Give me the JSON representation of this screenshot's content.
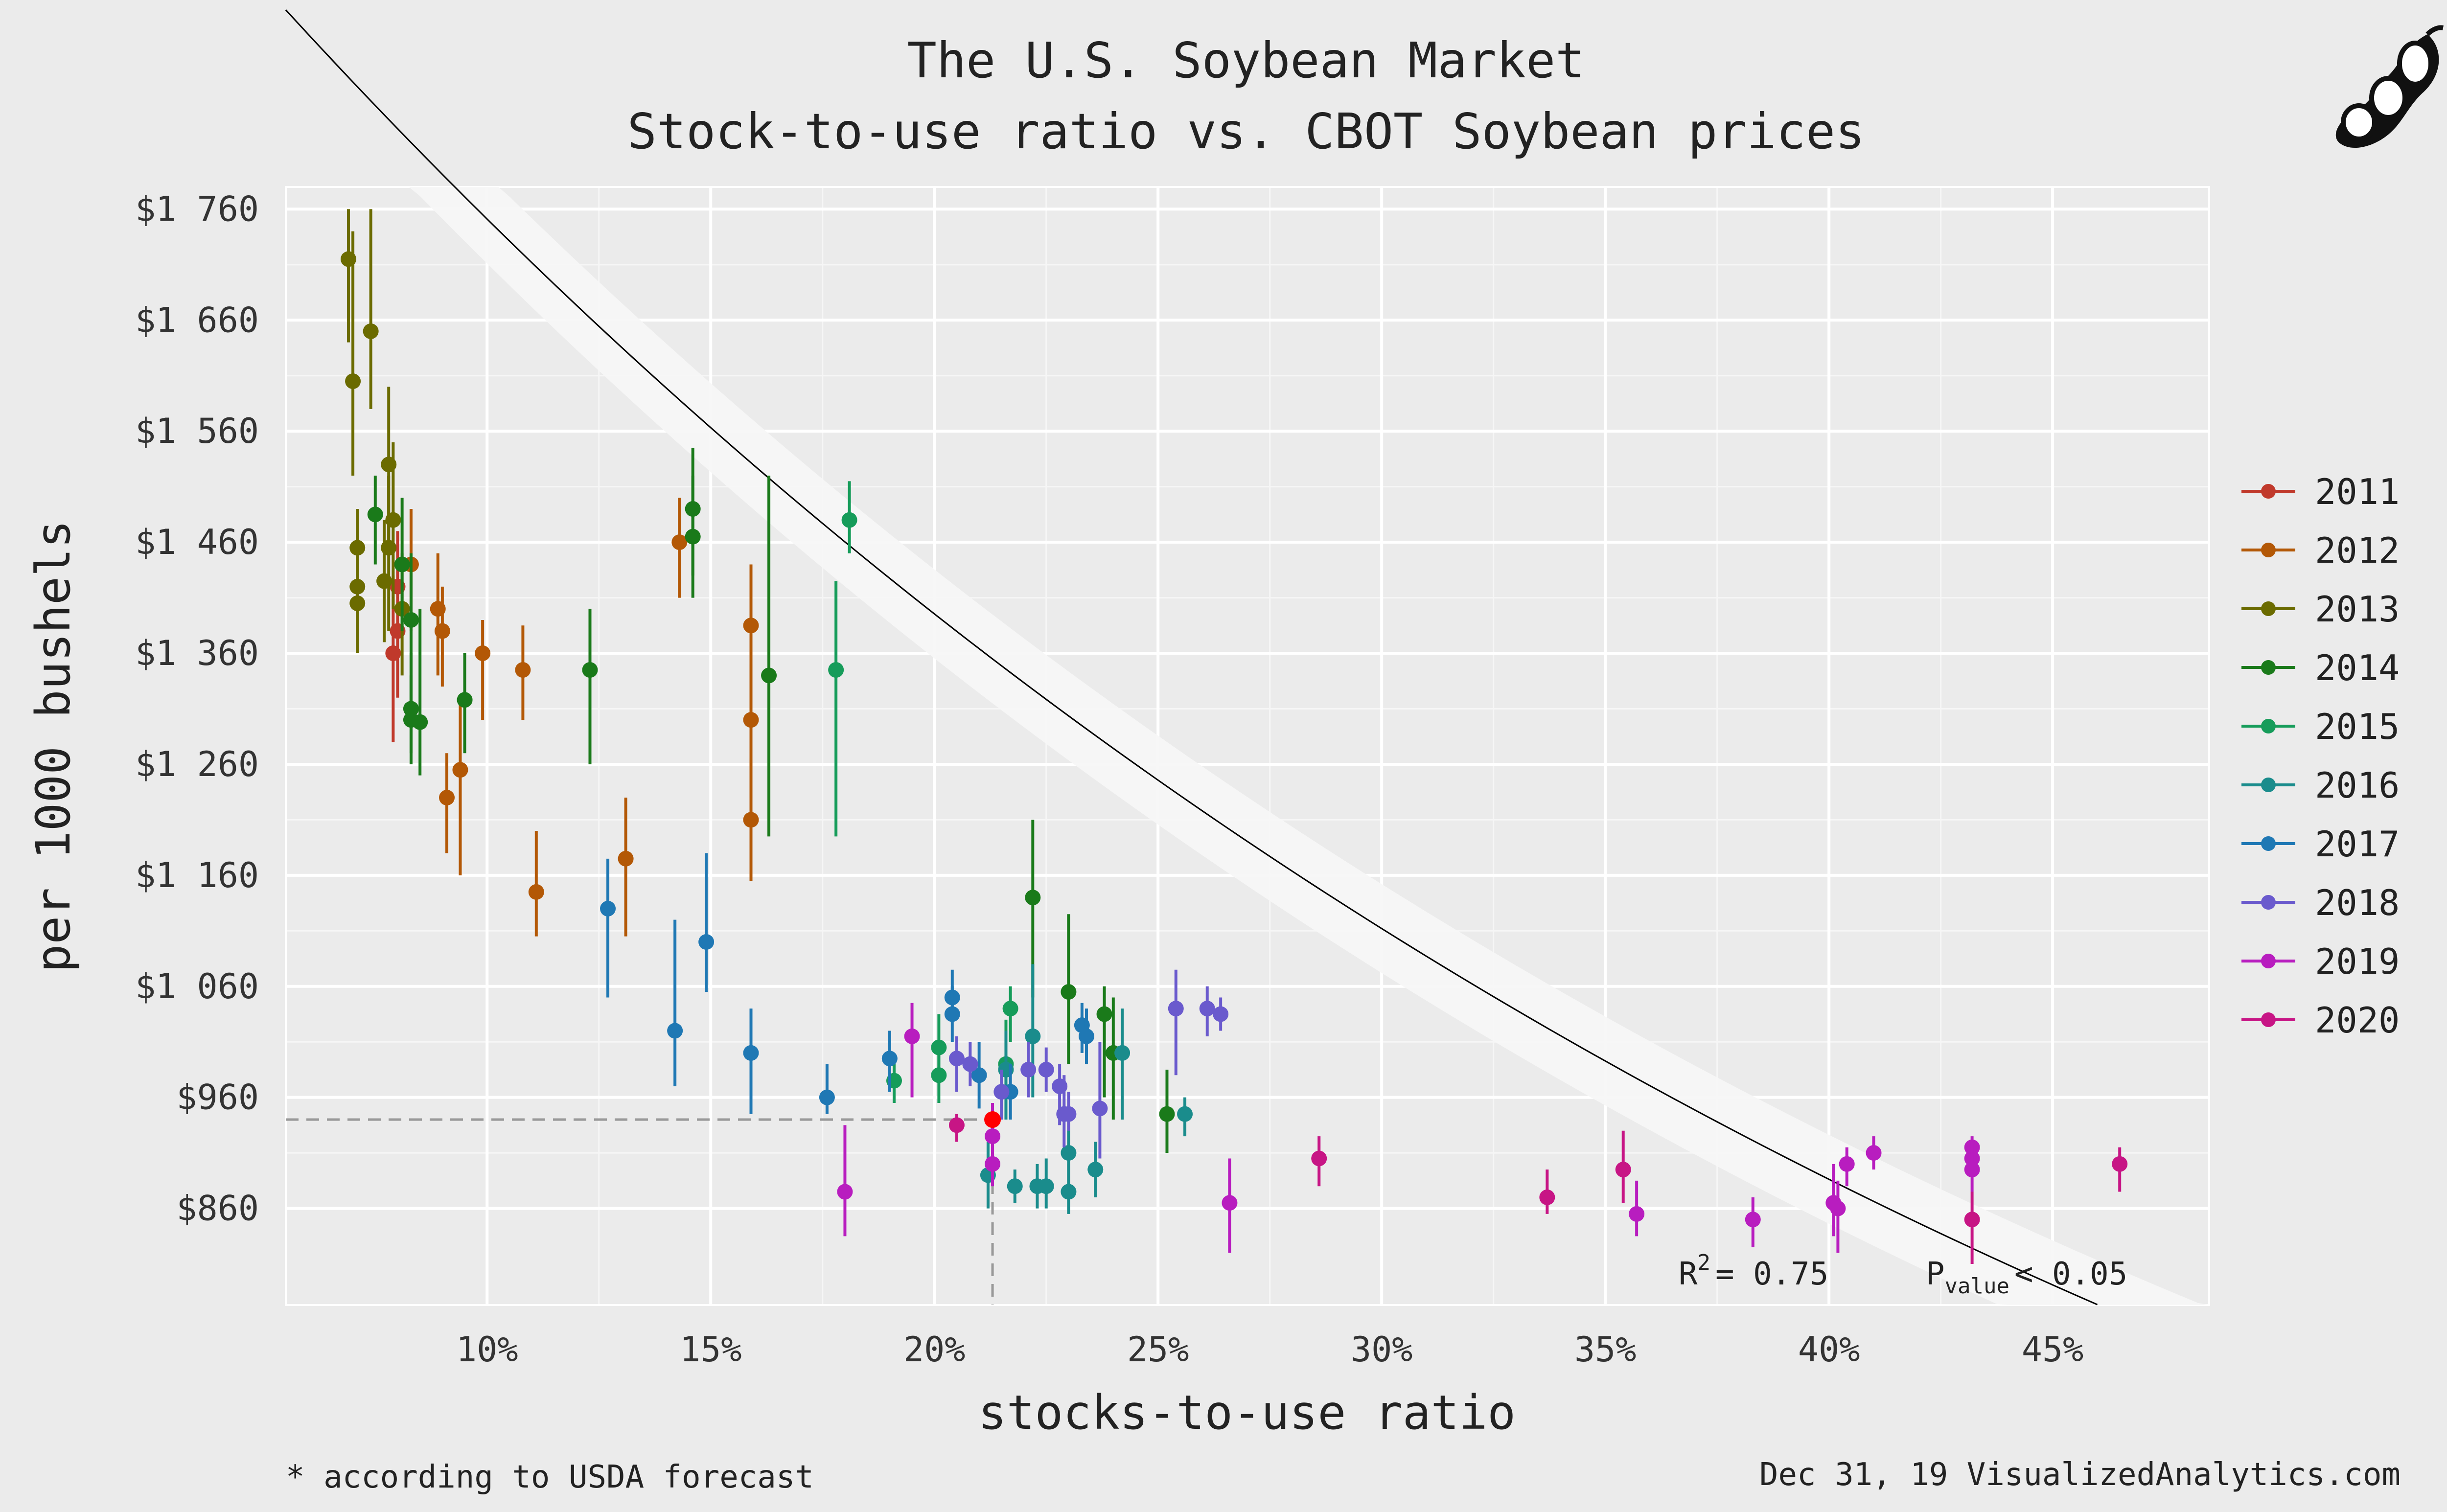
{
  "chart_data": {
    "type": "scatter",
    "title": "The U.S. Soybean Market",
    "subtitle": "Stock-to-use ratio vs. CBOT Soybean prices",
    "xlabel": "stocks-to-use ratio",
    "ylabel": "per 1000 bushels",
    "xlim": [
      5.5,
      48.5
    ],
    "ylim": [
      773,
      1780
    ],
    "x_ticks": [
      {
        "value": 10,
        "label": "10%"
      },
      {
        "value": 15,
        "label": "15%"
      },
      {
        "value": 20,
        "label": "20%"
      },
      {
        "value": 25,
        "label": "25%"
      },
      {
        "value": 30,
        "label": "30%"
      },
      {
        "value": 35,
        "label": "35%"
      },
      {
        "value": 40,
        "label": "40%"
      },
      {
        "value": 45,
        "label": "45%"
      }
    ],
    "y_ticks": [
      {
        "value": 860,
        "label": "$860"
      },
      {
        "value": 960,
        "label": "$960"
      },
      {
        "value": 1060,
        "label": "$1 060"
      },
      {
        "value": 1160,
        "label": "$1 160"
      },
      {
        "value": 1260,
        "label": "$1 260"
      },
      {
        "value": 1360,
        "label": "$1 360"
      },
      {
        "value": 1460,
        "label": "$1 460"
      },
      {
        "value": 1560,
        "label": "$1 560"
      },
      {
        "value": 1660,
        "label": "$1 660"
      },
      {
        "value": 1760,
        "label": "$1 760"
      }
    ],
    "grid": true,
    "legend_position": "right",
    "fit": {
      "type": "exponential",
      "a": 2197.3,
      "b": -0.0227,
      "band": 40,
      "r2_label": "R",
      "r2_sup": "2",
      "r2_value": "= 0.75",
      "p_label": "P",
      "p_sub": "value",
      "p_value": "< 0.05"
    },
    "highlight": {
      "x": 21.3,
      "y": 940,
      "color": "#ff0000"
    },
    "series": [
      {
        "name": "2011",
        "color": "#c0392b",
        "points": [
          {
            "x": 7.9,
            "y": 1360,
            "lo": 1280,
            "hi": 1430
          },
          {
            "x": 8.0,
            "y": 1380,
            "lo": 1320,
            "hi": 1440
          },
          {
            "x": 8.0,
            "y": 1420,
            "lo": 1360,
            "hi": 1470
          }
        ]
      },
      {
        "name": "2012",
        "color": "#b35806",
        "points": [
          {
            "x": 8.3,
            "y": 1440,
            "lo": 1380,
            "hi": 1490
          },
          {
            "x": 8.9,
            "y": 1400,
            "lo": 1340,
            "hi": 1450
          },
          {
            "x": 9.0,
            "y": 1380,
            "lo": 1330,
            "hi": 1420
          },
          {
            "x": 9.1,
            "y": 1230,
            "lo": 1180,
            "hi": 1270
          },
          {
            "x": 9.4,
            "y": 1255,
            "lo": 1160,
            "hi": 1320
          },
          {
            "x": 9.9,
            "y": 1360,
            "lo": 1300,
            "hi": 1390
          },
          {
            "x": 10.8,
            "y": 1345,
            "lo": 1300,
            "hi": 1385
          },
          {
            "x": 11.1,
            "y": 1145,
            "lo": 1105,
            "hi": 1200
          },
          {
            "x": 13.1,
            "y": 1175,
            "lo": 1105,
            "hi": 1230
          },
          {
            "x": 14.3,
            "y": 1460,
            "lo": 1410,
            "hi": 1500
          },
          {
            "x": 15.9,
            "y": 1385,
            "lo": 1310,
            "hi": 1440
          },
          {
            "x": 15.9,
            "y": 1300,
            "lo": 1230,
            "hi": 1350
          },
          {
            "x": 15.9,
            "y": 1210,
            "lo": 1155,
            "hi": 1265
          }
        ]
      },
      {
        "name": "2013",
        "color": "#6b6b00",
        "points": [
          {
            "x": 6.9,
            "y": 1715,
            "lo": 1640,
            "hi": 1760
          },
          {
            "x": 7.0,
            "y": 1605,
            "lo": 1520,
            "hi": 1740
          },
          {
            "x": 7.1,
            "y": 1455,
            "lo": 1390,
            "hi": 1490
          },
          {
            "x": 7.1,
            "y": 1420,
            "lo": 1360,
            "hi": 1470
          },
          {
            "x": 7.1,
            "y": 1405,
            "lo": 1360,
            "hi": 1440
          },
          {
            "x": 7.4,
            "y": 1650,
            "lo": 1580,
            "hi": 1760
          },
          {
            "x": 7.7,
            "y": 1425,
            "lo": 1370,
            "hi": 1480
          },
          {
            "x": 7.8,
            "y": 1530,
            "lo": 1460,
            "hi": 1600
          },
          {
            "x": 7.8,
            "y": 1455,
            "lo": 1380,
            "hi": 1520
          },
          {
            "x": 7.9,
            "y": 1480,
            "lo": 1400,
            "hi": 1550
          },
          {
            "x": 8.1,
            "y": 1400,
            "lo": 1340,
            "hi": 1450
          }
        ]
      },
      {
        "name": "2014",
        "color": "#1a7a1a",
        "points": [
          {
            "x": 7.5,
            "y": 1485,
            "lo": 1440,
            "hi": 1520
          },
          {
            "x": 8.1,
            "y": 1440,
            "lo": 1380,
            "hi": 1500
          },
          {
            "x": 8.3,
            "y": 1390,
            "lo": 1300,
            "hi": 1450
          },
          {
            "x": 8.3,
            "y": 1310,
            "lo": 1270,
            "hi": 1360
          },
          {
            "x": 8.3,
            "y": 1300,
            "lo": 1260,
            "hi": 1340
          },
          {
            "x": 8.5,
            "y": 1298,
            "lo": 1250,
            "hi": 1400
          },
          {
            "x": 9.5,
            "y": 1318,
            "lo": 1270,
            "hi": 1360
          },
          {
            "x": 12.3,
            "y": 1345,
            "lo": 1260,
            "hi": 1400
          },
          {
            "x": 14.6,
            "y": 1465,
            "lo": 1410,
            "hi": 1520
          },
          {
            "x": 14.6,
            "y": 1490,
            "lo": 1430,
            "hi": 1545
          },
          {
            "x": 16.3,
            "y": 1340,
            "lo": 1195,
            "hi": 1520
          },
          {
            "x": 22.2,
            "y": 1140,
            "lo": 1050,
            "hi": 1210
          },
          {
            "x": 23.0,
            "y": 1055,
            "lo": 990,
            "hi": 1125
          },
          {
            "x": 23.8,
            "y": 1035,
            "lo": 960,
            "hi": 1060
          },
          {
            "x": 24.0,
            "y": 1000,
            "lo": 940,
            "hi": 1050
          },
          {
            "x": 25.2,
            "y": 945,
            "lo": 910,
            "hi": 985
          }
        ]
      },
      {
        "name": "2015",
        "color": "#169c5a",
        "points": [
          {
            "x": 17.8,
            "y": 1345,
            "lo": 1195,
            "hi": 1425
          },
          {
            "x": 18.1,
            "y": 1480,
            "lo": 1450,
            "hi": 1515
          },
          {
            "x": 19.1,
            "y": 975,
            "lo": 955,
            "hi": 995
          },
          {
            "x": 20.1,
            "y": 1005,
            "lo": 975,
            "hi": 1035
          },
          {
            "x": 20.1,
            "y": 980,
            "lo": 955,
            "hi": 1005
          },
          {
            "x": 21.7,
            "y": 1040,
            "lo": 1010,
            "hi": 1060
          },
          {
            "x": 21.6,
            "y": 990,
            "lo": 940,
            "hi": 1030
          }
        ]
      },
      {
        "name": "2016",
        "color": "#1a8c8c",
        "points": [
          {
            "x": 21.2,
            "y": 890,
            "lo": 860,
            "hi": 920
          },
          {
            "x": 21.6,
            "y": 985,
            "lo": 940,
            "hi": 1020
          },
          {
            "x": 21.8,
            "y": 880,
            "lo": 865,
            "hi": 895
          },
          {
            "x": 22.2,
            "y": 1015,
            "lo": 960,
            "hi": 1080
          },
          {
            "x": 22.3,
            "y": 880,
            "lo": 860,
            "hi": 900
          },
          {
            "x": 22.5,
            "y": 880,
            "lo": 860,
            "hi": 905
          },
          {
            "x": 23.0,
            "y": 910,
            "lo": 880,
            "hi": 940
          },
          {
            "x": 23.0,
            "y": 875,
            "lo": 855,
            "hi": 900
          },
          {
            "x": 23.6,
            "y": 895,
            "lo": 870,
            "hi": 920
          },
          {
            "x": 24.2,
            "y": 1000,
            "lo": 940,
            "hi": 1040
          },
          {
            "x": 25.6,
            "y": 945,
            "lo": 925,
            "hi": 960
          }
        ]
      },
      {
        "name": "2017",
        "color": "#1f78b4",
        "points": [
          {
            "x": 12.7,
            "y": 1130,
            "lo": 1050,
            "hi": 1175
          },
          {
            "x": 14.2,
            "y": 1020,
            "lo": 970,
            "hi": 1120
          },
          {
            "x": 14.9,
            "y": 1100,
            "lo": 1055,
            "hi": 1180
          },
          {
            "x": 15.9,
            "y": 1000,
            "lo": 945,
            "hi": 1040
          },
          {
            "x": 17.6,
            "y": 960,
            "lo": 945,
            "hi": 990
          },
          {
            "x": 19.0,
            "y": 995,
            "lo": 965,
            "hi": 1020
          },
          {
            "x": 20.4,
            "y": 1050,
            "lo": 1030,
            "hi": 1075
          },
          {
            "x": 20.4,
            "y": 1035,
            "lo": 1010,
            "hi": 1060
          },
          {
            "x": 21.0,
            "y": 980,
            "lo": 950,
            "hi": 1010
          },
          {
            "x": 21.7,
            "y": 965,
            "lo": 940,
            "hi": 990
          },
          {
            "x": 23.3,
            "y": 1025,
            "lo": 1000,
            "hi": 1045
          },
          {
            "x": 23.4,
            "y": 1015,
            "lo": 990,
            "hi": 1040
          }
        ]
      },
      {
        "name": "2018",
        "color": "#6a5acd",
        "points": [
          {
            "x": 20.5,
            "y": 995,
            "lo": 965,
            "hi": 1015
          },
          {
            "x": 20.8,
            "y": 990,
            "lo": 970,
            "hi": 1010
          },
          {
            "x": 21.5,
            "y": 965,
            "lo": 940,
            "hi": 985
          },
          {
            "x": 22.1,
            "y": 985,
            "lo": 960,
            "hi": 1010
          },
          {
            "x": 22.5,
            "y": 985,
            "lo": 965,
            "hi": 1005
          },
          {
            "x": 22.8,
            "y": 970,
            "lo": 935,
            "hi": 990
          },
          {
            "x": 22.9,
            "y": 945,
            "lo": 915,
            "hi": 980
          },
          {
            "x": 23.0,
            "y": 945,
            "lo": 930,
            "hi": 965
          },
          {
            "x": 23.7,
            "y": 950,
            "lo": 905,
            "hi": 1010
          },
          {
            "x": 25.4,
            "y": 1040,
            "lo": 980,
            "hi": 1075
          },
          {
            "x": 26.1,
            "y": 1040,
            "lo": 1015,
            "hi": 1060
          },
          {
            "x": 26.4,
            "y": 1035,
            "lo": 1020,
            "hi": 1050
          }
        ]
      },
      {
        "name": "2019",
        "color": "#b81dbf",
        "points": [
          {
            "x": 18.0,
            "y": 875,
            "lo": 835,
            "hi": 935
          },
          {
            "x": 19.5,
            "y": 1015,
            "lo": 960,
            "hi": 1045
          },
          {
            "x": 21.3,
            "y": 900,
            "lo": 880,
            "hi": 930
          },
          {
            "x": 21.3,
            "y": 925,
            "lo": 905,
            "hi": 955
          },
          {
            "x": 26.6,
            "y": 865,
            "lo": 820,
            "hi": 905
          },
          {
            "x": 35.7,
            "y": 855,
            "lo": 835,
            "hi": 885
          },
          {
            "x": 38.3,
            "y": 850,
            "lo": 825,
            "hi": 870
          },
          {
            "x": 40.1,
            "y": 865,
            "lo": 835,
            "hi": 900
          },
          {
            "x": 40.2,
            "y": 860,
            "lo": 820,
            "hi": 885
          },
          {
            "x": 40.4,
            "y": 900,
            "lo": 880,
            "hi": 915
          },
          {
            "x": 41.0,
            "y": 910,
            "lo": 895,
            "hi": 925
          },
          {
            "x": 43.2,
            "y": 915,
            "lo": 895,
            "hi": 925
          },
          {
            "x": 43.2,
            "y": 905,
            "lo": 890,
            "hi": 920
          },
          {
            "x": 43.2,
            "y": 895,
            "lo": 875,
            "hi": 915
          }
        ]
      },
      {
        "name": "2020",
        "color": "#c71585",
        "points": [
          {
            "x": 20.5,
            "y": 935,
            "lo": 920,
            "hi": 945
          },
          {
            "x": 28.6,
            "y": 905,
            "lo": 880,
            "hi": 925
          },
          {
            "x": 33.7,
            "y": 870,
            "lo": 855,
            "hi": 895
          },
          {
            "x": 35.4,
            "y": 895,
            "lo": 865,
            "hi": 930
          },
          {
            "x": 43.2,
            "y": 850,
            "lo": 810,
            "hi": 875
          },
          {
            "x": 46.5,
            "y": 900,
            "lo": 875,
            "hi": 915
          }
        ]
      }
    ]
  },
  "footer": {
    "note": "* according to USDA forecast",
    "credit": "Dec 31, 19  VisualizedAnalytics.com"
  },
  "logo": {
    "name": "soybean pod"
  }
}
